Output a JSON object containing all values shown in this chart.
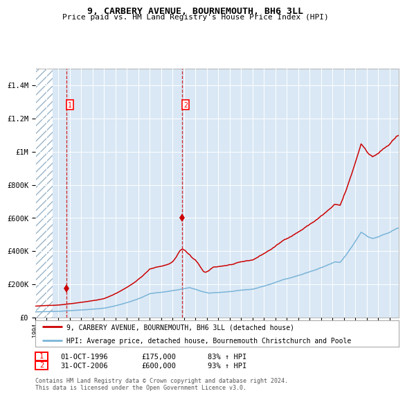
{
  "title": "9, CARBERY AVENUE, BOURNEMOUTH, BH6 3LL",
  "subtitle": "Price paid vs. HM Land Registry's House Price Index (HPI)",
  "ylim": [
    0,
    1500000
  ],
  "xlim_start": 1994.0,
  "xlim_end": 2025.8,
  "hpi_color": "#7ab4d8",
  "price_color": "#cc0000",
  "bg_color": "#dae8f5",
  "purchase1_date": 1996.75,
  "purchase1_price": 175000,
  "purchase2_date": 2006.833,
  "purchase2_price": 600000,
  "hatch_end": 1995.5,
  "legend_line1": "9, CARBERY AVENUE, BOURNEMOUTH, BH6 3LL (detached house)",
  "legend_line2": "HPI: Average price, detached house, Bournemouth Christchurch and Poole",
  "ytick_labels": [
    "£0",
    "£200K",
    "£400K",
    "£600K",
    "£800K",
    "£1M",
    "£1.2M",
    "£1.4M"
  ],
  "ytick_values": [
    0,
    200000,
    400000,
    600000,
    800000,
    1000000,
    1200000,
    1400000
  ],
  "footnote": "Contains HM Land Registry data © Crown copyright and database right 2024.\nThis data is licensed under the Open Government Licence v3.0."
}
